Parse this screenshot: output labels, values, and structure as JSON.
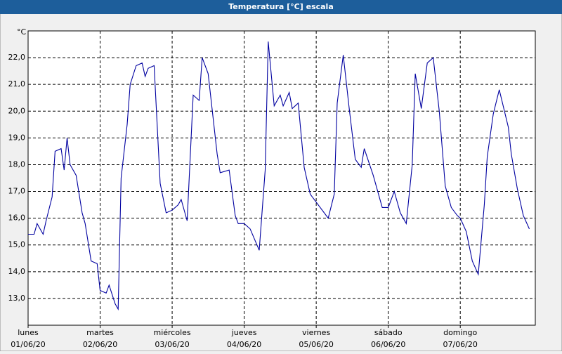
{
  "chart_data": {
    "type": "line",
    "title": "Temperatura [°C] escala",
    "y_label": "°C",
    "x": [
      0,
      2,
      3,
      5,
      6,
      8,
      9,
      11,
      12,
      13,
      14,
      16,
      18,
      19,
      21,
      23,
      24,
      26,
      27,
      29,
      30,
      31,
      33,
      34,
      36,
      38,
      39,
      40,
      42,
      44,
      46,
      48,
      50,
      51,
      53,
      55,
      57,
      58,
      60,
      63,
      64,
      67,
      69,
      70,
      72,
      74,
      77,
      79,
      80,
      82,
      84,
      85,
      87,
      88,
      90,
      92,
      94,
      96,
      100,
      102,
      103,
      105,
      107,
      109,
      111,
      112,
      115,
      118,
      120,
      122,
      124,
      126,
      128,
      129,
      131,
      133,
      135,
      137,
      139,
      141,
      143,
      144,
      146,
      148,
      150,
      152,
      153,
      155,
      157,
      160,
      161,
      163,
      165,
      167
    ],
    "series": [
      {
        "name": "Temperatura",
        "color": "#0000a0",
        "values": [
          15.4,
          15.4,
          15.8,
          15.4,
          15.9,
          16.8,
          18.5,
          18.6,
          17.8,
          19.0,
          18.0,
          17.6,
          16.2,
          15.8,
          14.4,
          14.3,
          13.3,
          13.2,
          13.5,
          12.8,
          12.6,
          17.5,
          19.5,
          21.0,
          21.7,
          21.8,
          21.3,
          21.6,
          21.7,
          17.3,
          16.2,
          16.3,
          16.5,
          16.7,
          15.9,
          20.6,
          20.4,
          22.0,
          21.4,
          18.4,
          17.7,
          17.8,
          16.1,
          15.8,
          15.8,
          15.6,
          14.8,
          17.8,
          22.6,
          20.2,
          20.6,
          20.2,
          20.7,
          20.1,
          20.3,
          17.9,
          16.9,
          16.6,
          16.0,
          16.9,
          20.3,
          22.1,
          20.1,
          18.2,
          17.9,
          18.6,
          17.6,
          16.4,
          16.4,
          17.0,
          16.2,
          15.8,
          18.0,
          21.4,
          20.1,
          21.8,
          22.0,
          20.0,
          17.2,
          16.4,
          16.1,
          16.0,
          15.5,
          14.4,
          13.9,
          16.5,
          18.3,
          19.9,
          20.8,
          19.4,
          18.4,
          17.1,
          16.1,
          15.6
        ]
      }
    ],
    "xlim": [
      0,
      169
    ],
    "xticks": [
      {
        "value": 0,
        "label": "lunes",
        "date": "01/06/20"
      },
      {
        "value": 24,
        "label": "martes",
        "date": "02/06/20"
      },
      {
        "value": 48,
        "label": "miércoles",
        "date": "03/06/20"
      },
      {
        "value": 72,
        "label": "jueves",
        "date": "04/06/20"
      },
      {
        "value": 96,
        "label": "viernes",
        "date": "05/06/20"
      },
      {
        "value": 120,
        "label": "sábado",
        "date": "06/06/20"
      },
      {
        "value": 144,
        "label": "domingo",
        "date": "07/06/20"
      }
    ],
    "ylim": [
      12,
      23
    ],
    "yticks": [
      {
        "value": 13,
        "label": "13,0"
      },
      {
        "value": 14,
        "label": "14,0"
      },
      {
        "value": 15,
        "label": "15,0"
      },
      {
        "value": 16,
        "label": "16,0"
      },
      {
        "value": 17,
        "label": "17,0"
      },
      {
        "value": 18,
        "label": "18,0"
      },
      {
        "value": 19,
        "label": "19,0"
      },
      {
        "value": 20,
        "label": "20,0"
      },
      {
        "value": 21,
        "label": "21,0"
      },
      {
        "value": 22,
        "label": "22,0"
      }
    ],
    "grid": true
  }
}
